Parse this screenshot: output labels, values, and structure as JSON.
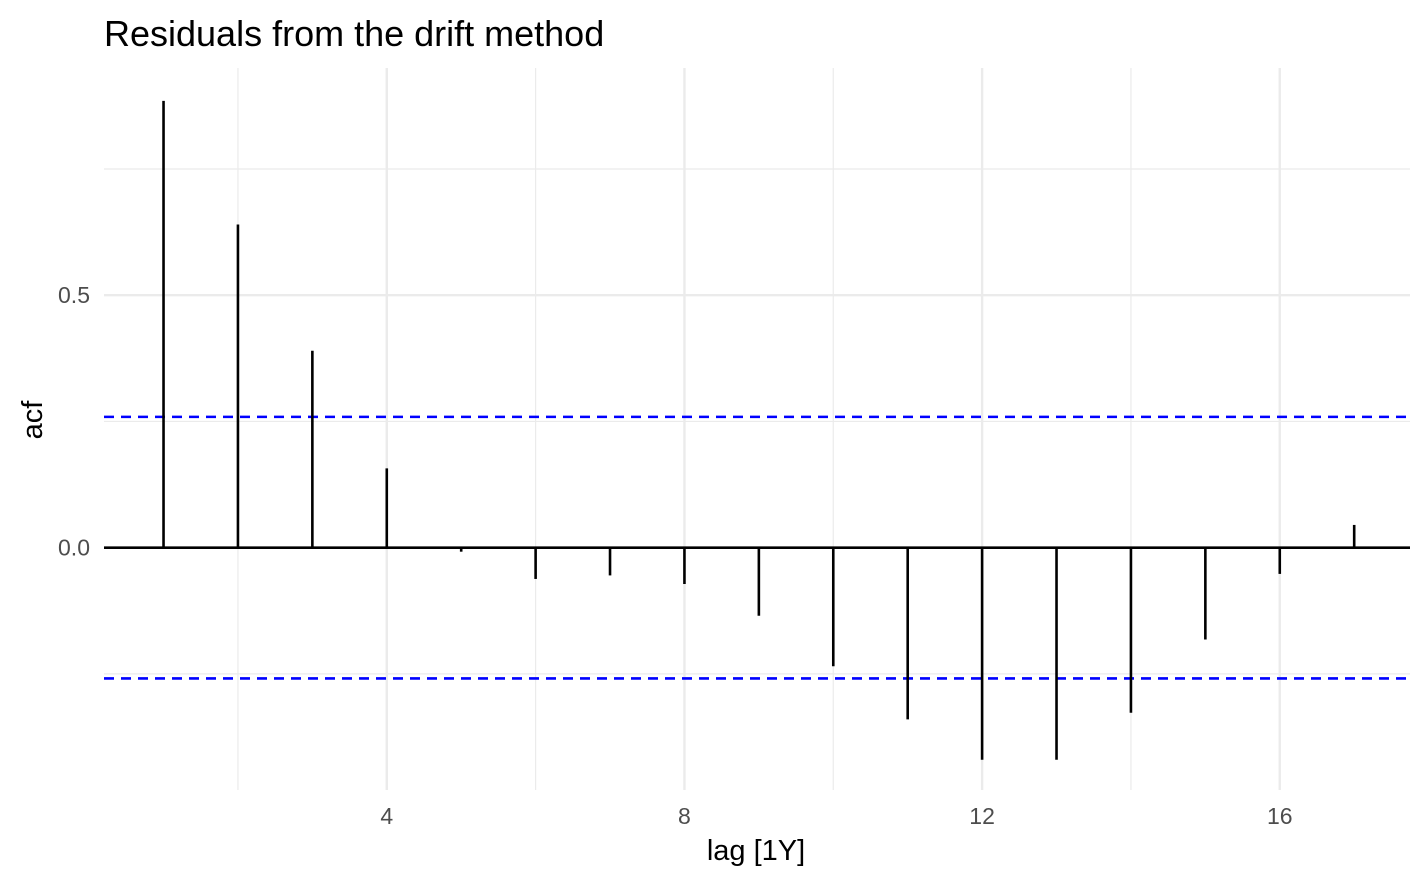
{
  "chart_data": {
    "type": "bar",
    "title": "Residuals from the drift method",
    "xlabel": "lag [1Y]",
    "ylabel": "acf",
    "x_ticks": [
      4,
      8,
      12,
      16
    ],
    "y_ticks": [
      0.0,
      0.5
    ],
    "y_tick_labels": [
      "0.0",
      "0.5"
    ],
    "x_tick_labels": [
      "4",
      "8",
      "12",
      "16"
    ],
    "xlim": [
      0.2,
      17.75
    ],
    "ylim": [
      -0.48,
      0.95
    ],
    "lags": [
      1,
      2,
      3,
      4,
      5,
      6,
      7,
      8,
      9,
      10,
      11,
      12,
      13,
      14,
      15,
      16,
      17
    ],
    "values": [
      0.885,
      0.64,
      0.39,
      0.157,
      -0.008,
      -0.062,
      -0.055,
      -0.072,
      -0.135,
      -0.235,
      -0.34,
      -0.42,
      -0.42,
      -0.327,
      -0.182,
      -0.052,
      0.045
    ],
    "confidence_bound": 0.259,
    "grid": true,
    "colors": {
      "bars": "#000000",
      "bounds": "#0000ff",
      "grid": "#ebebeb"
    }
  }
}
